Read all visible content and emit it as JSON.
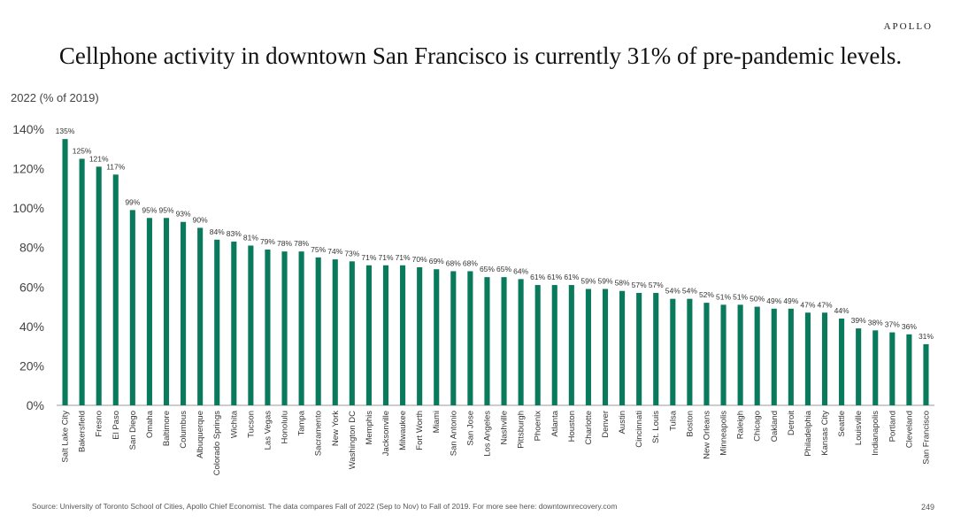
{
  "brand": "APOLLO",
  "title": "Cellphone activity in downtown San Francisco is currently 31% of pre-pandemic levels.",
  "subtitle": "2022 (% of 2019)",
  "source": "Source: University of Toronto School of Cities, Apollo Chief Economist. The data compares Fall of 2022 (Sep to Nov) to Fall of 2019. For more see here: downtownrecovery.com",
  "page_number": "249",
  "colors": {
    "bar": "#0a7a5c",
    "axis": "#999999"
  },
  "chart_data": {
    "type": "bar",
    "title": "Cellphone activity in downtown San Francisco is currently 31% of pre-pandemic levels.",
    "ylabel": "2022 (% of 2019)",
    "xlabel": "",
    "ylim": [
      0,
      140
    ],
    "yticks": [
      "0%",
      "20%",
      "40%",
      "60%",
      "80%",
      "100%",
      "120%",
      "140%"
    ],
    "grid": false,
    "categories": [
      "Salt Lake City",
      "Bakersfield",
      "Fresno",
      "El Paso",
      "San Diego",
      "Omaha",
      "Baltimore",
      "Columbus",
      "Albuquerque",
      "Colorado Springs",
      "Wichita",
      "Tucson",
      "Las Vegas",
      "Honolulu",
      "Tampa",
      "Sacramento",
      "New York",
      "Washington DC",
      "Memphis",
      "Jacksonville",
      "Milwaukee",
      "Fort Worth",
      "Miami",
      "San Antonio",
      "San Jose",
      "Los Angeles",
      "Nashville",
      "Pittsburgh",
      "Phoenix",
      "Atlanta",
      "Houston",
      "Charlotte",
      "Denver",
      "Austin",
      "Cincinnati",
      "St. Louis",
      "Tulsa",
      "Boston",
      "New Orleans",
      "Minneapolis",
      "Raleigh",
      "Chicago",
      "Oakland",
      "Detroit",
      "Philadelphia",
      "Kansas City",
      "Seattle",
      "Louisville",
      "Indianapolis",
      "Portland",
      "Cleveland",
      "San Francisco"
    ],
    "values": [
      135,
      125,
      121,
      117,
      99,
      95,
      95,
      93,
      90,
      84,
      83,
      81,
      79,
      78,
      78,
      75,
      74,
      73,
      71,
      71,
      71,
      70,
      69,
      68,
      68,
      65,
      65,
      64,
      61,
      61,
      61,
      59,
      59,
      58,
      57,
      57,
      54,
      54,
      52,
      51,
      51,
      50,
      49,
      49,
      47,
      47,
      44,
      39,
      38,
      37,
      36,
      31
    ],
    "value_labels": [
      "135%",
      "125%",
      "121%",
      "117%",
      "99%",
      "95%",
      "95%",
      "93%",
      "90%",
      "84%",
      "83%",
      "81%",
      "79%",
      "78%",
      "78%",
      "75%",
      "74%",
      "73%",
      "71%",
      "71%",
      "71%",
      "70%",
      "69%",
      "68%",
      "68%",
      "65%",
      "65%",
      "64%",
      "61%",
      "61%",
      "61%",
      "59%",
      "59%",
      "58%",
      "57%",
      "57%",
      "54%",
      "54%",
      "52%",
      "51%",
      "51%",
      "50%",
      "49%",
      "49%",
      "47%",
      "47%",
      "44%",
      "39%",
      "38%",
      "37%",
      "36%",
      "31%"
    ]
  }
}
